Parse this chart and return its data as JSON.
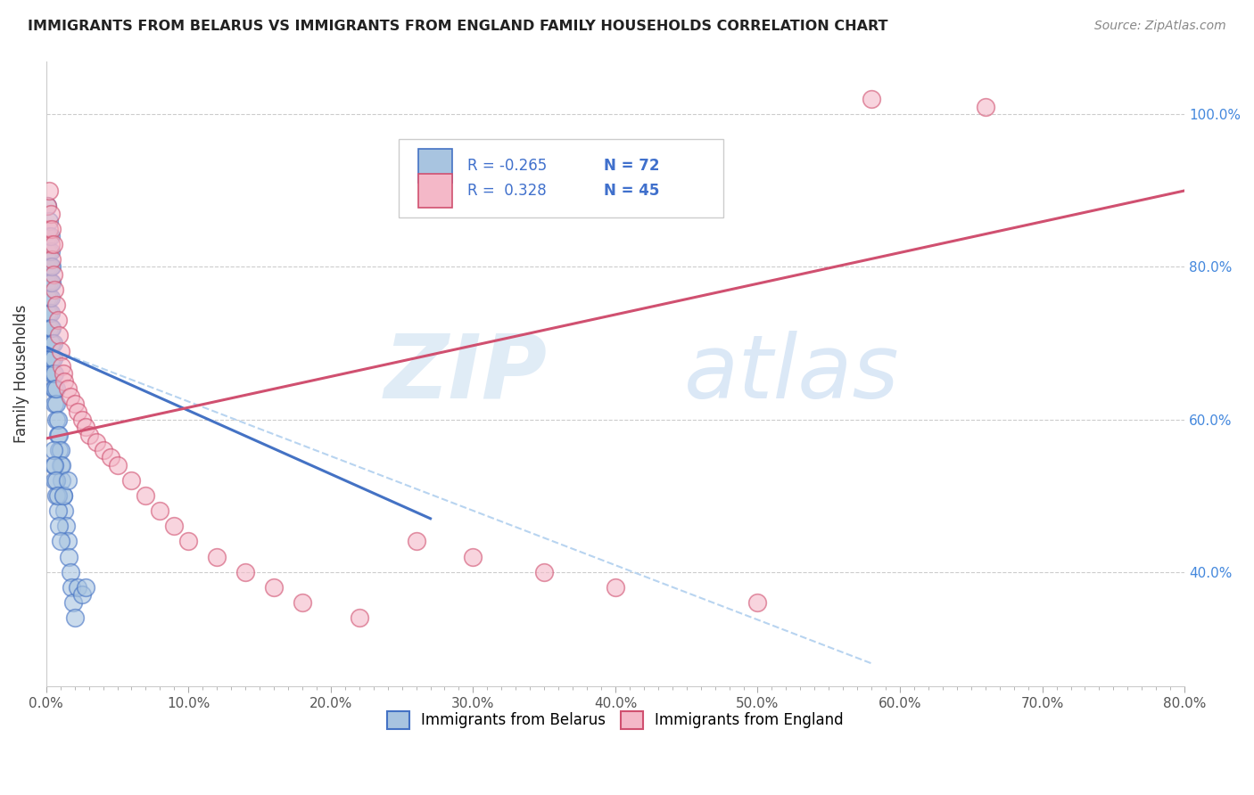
{
  "title": "IMMIGRANTS FROM BELARUS VS IMMIGRANTS FROM ENGLAND FAMILY HOUSEHOLDS CORRELATION CHART",
  "source": "Source: ZipAtlas.com",
  "ylabel": "Family Households",
  "x_tick_labels": [
    "0.0%",
    "",
    "",
    "",
    "",
    "",
    "",
    "",
    "",
    "10.0%",
    "",
    "",
    "",
    "",
    "",
    "",
    "",
    "",
    "",
    "20.0%",
    "",
    "",
    "",
    "",
    "",
    "",
    "",
    "",
    "",
    "30.0%",
    "",
    "",
    "",
    "",
    "",
    "",
    "",
    "",
    "",
    "40.0%",
    "",
    "",
    "",
    "",
    "",
    "",
    "",
    "",
    "",
    "50.0%",
    "",
    "",
    "",
    "",
    "",
    "",
    "",
    "",
    "",
    "60.0%",
    "",
    "",
    "",
    "",
    "",
    "",
    "",
    "",
    "",
    "70.0%",
    "",
    "",
    "",
    "",
    "",
    "",
    "",
    "",
    "",
    "80.0%"
  ],
  "y_tick_labels_right": [
    "40.0%",
    "60.0%",
    "80.0%",
    "100.0%"
  ],
  "xlim": [
    0.0,
    0.8
  ],
  "ylim": [
    0.25,
    1.07
  ],
  "legend_R_blue": "-0.265",
  "legend_N_blue": "72",
  "legend_R_pink": "0.328",
  "legend_N_pink": "45",
  "legend_label_blue": "Immigrants from Belarus",
  "legend_label_pink": "Immigrants from England",
  "color_blue": "#a8c4e0",
  "color_pink": "#f4b8c8",
  "line_color_blue": "#4472c4",
  "line_color_pink": "#d05070",
  "line_color_dashed": "#b8d4f0",
  "blue_scatter_x": [
    0.001,
    0.001,
    0.001,
    0.001,
    0.001,
    0.002,
    0.002,
    0.002,
    0.002,
    0.002,
    0.003,
    0.003,
    0.003,
    0.003,
    0.003,
    0.003,
    0.004,
    0.004,
    0.004,
    0.004,
    0.005,
    0.005,
    0.005,
    0.005,
    0.006,
    0.006,
    0.006,
    0.007,
    0.007,
    0.007,
    0.008,
    0.008,
    0.009,
    0.009,
    0.01,
    0.01,
    0.011,
    0.011,
    0.012,
    0.013,
    0.014,
    0.015,
    0.016,
    0.017,
    0.018,
    0.019,
    0.02,
    0.022,
    0.025,
    0.028,
    0.001,
    0.001,
    0.002,
    0.002,
    0.002,
    0.003,
    0.003,
    0.003,
    0.004,
    0.004,
    0.005,
    0.005,
    0.006,
    0.006,
    0.007,
    0.007,
    0.008,
    0.008,
    0.009,
    0.01,
    0.012,
    0.015
  ],
  "blue_scatter_y": [
    0.74,
    0.76,
    0.78,
    0.8,
    0.82,
    0.72,
    0.74,
    0.76,
    0.78,
    0.8,
    0.68,
    0.7,
    0.72,
    0.74,
    0.76,
    0.78,
    0.66,
    0.68,
    0.7,
    0.72,
    0.64,
    0.66,
    0.68,
    0.7,
    0.62,
    0.64,
    0.66,
    0.6,
    0.62,
    0.64,
    0.58,
    0.6,
    0.56,
    0.58,
    0.54,
    0.56,
    0.52,
    0.54,
    0.5,
    0.48,
    0.46,
    0.44,
    0.42,
    0.4,
    0.38,
    0.36,
    0.34,
    0.38,
    0.37,
    0.38,
    0.84,
    0.88,
    0.82,
    0.84,
    0.86,
    0.8,
    0.82,
    0.84,
    0.78,
    0.8,
    0.54,
    0.56,
    0.52,
    0.54,
    0.5,
    0.52,
    0.48,
    0.5,
    0.46,
    0.44,
    0.5,
    0.52
  ],
  "pink_scatter_x": [
    0.001,
    0.002,
    0.002,
    0.003,
    0.003,
    0.004,
    0.004,
    0.005,
    0.005,
    0.006,
    0.007,
    0.008,
    0.009,
    0.01,
    0.011,
    0.012,
    0.013,
    0.015,
    0.017,
    0.02,
    0.022,
    0.025,
    0.028,
    0.03,
    0.035,
    0.04,
    0.045,
    0.05,
    0.06,
    0.07,
    0.08,
    0.09,
    0.1,
    0.12,
    0.14,
    0.16,
    0.18,
    0.22,
    0.26,
    0.3,
    0.35,
    0.4,
    0.5,
    0.58,
    0.66
  ],
  "pink_scatter_y": [
    0.88,
    0.85,
    0.9,
    0.83,
    0.87,
    0.81,
    0.85,
    0.79,
    0.83,
    0.77,
    0.75,
    0.73,
    0.71,
    0.69,
    0.67,
    0.66,
    0.65,
    0.64,
    0.63,
    0.62,
    0.61,
    0.6,
    0.59,
    0.58,
    0.57,
    0.56,
    0.55,
    0.54,
    0.52,
    0.5,
    0.48,
    0.46,
    0.44,
    0.42,
    0.4,
    0.38,
    0.36,
    0.34,
    0.44,
    0.42,
    0.4,
    0.38,
    0.36,
    1.02,
    1.01
  ],
  "blue_line_x": [
    0.0,
    0.27
  ],
  "blue_line_y": [
    0.695,
    0.47
  ],
  "pink_line_x": [
    0.0,
    0.8
  ],
  "pink_line_y": [
    0.575,
    0.9
  ],
  "dashed_line_x": [
    0.0,
    0.58
  ],
  "dashed_line_y": [
    0.695,
    0.28
  ]
}
